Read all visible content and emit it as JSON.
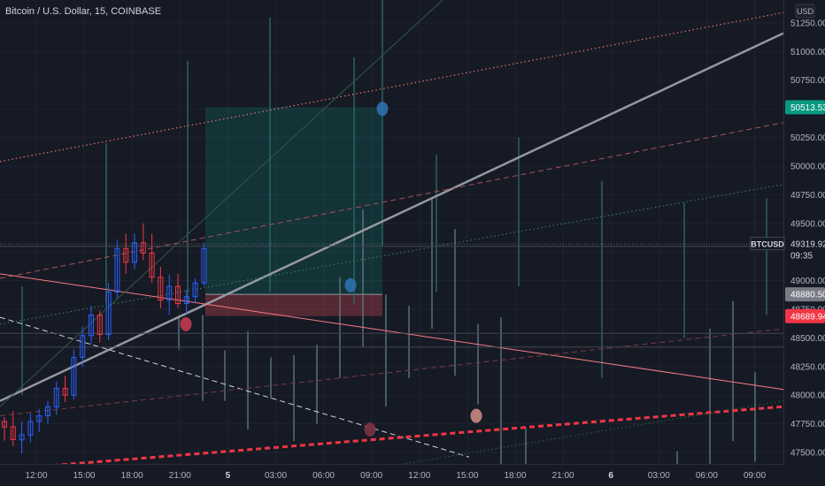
{
  "header": {
    "title": "Bitcoin / U.S. Dollar, 15, COINBASE"
  },
  "currency_button": {
    "label": "USD"
  },
  "colors": {
    "background": "#161a25",
    "up": "#2962ff",
    "down": "#f23645",
    "take_profit": "#089981",
    "stop_loss": "#f7525f",
    "current_price": "#d1d4dc"
  },
  "chart_data": {
    "type": "line",
    "title": "Bitcoin / U.S. Dollar, 15, COINBASE",
    "xlabel": "",
    "ylabel": "",
    "ylim": [
      47400,
      51450
    ],
    "y_ticks": [
      "51250.00",
      "51000.00",
      "50750.00",
      "50500.00",
      "50250.00",
      "50000.00",
      "49750.00",
      "49500.00",
      "49250.00",
      "49000.00",
      "48750.00",
      "48500.00",
      "48250.00",
      "48000.00",
      "47750.00",
      "47500.00"
    ],
    "x_ticks": [
      "12:00",
      "15:00",
      "18:00",
      "21:00",
      "5",
      "03:00",
      "06:00",
      "09:00",
      "12:00",
      "15:00",
      "18:00",
      "21:00",
      "6",
      "03:00",
      "06:00",
      "09:00"
    ],
    "price_labels": [
      {
        "symbol": "",
        "value": "50513.53",
        "price": 50513.53,
        "color": "#089981"
      },
      {
        "symbol": "BTCUSD",
        "value": "49319.92",
        "price": 49319.92,
        "color": "#161a25",
        "countdown": "09:35"
      },
      {
        "symbol": "",
        "value": "48880.50",
        "price": 48880.5,
        "color": "#787b86"
      },
      {
        "symbol": "",
        "value": "48689.94",
        "price": 48689.94,
        "color": "#f23645"
      }
    ],
    "position": {
      "entry": 48880.5,
      "target": 50513.53,
      "stop": 48689.94
    },
    "candles": [
      [
        47771,
        47809,
        47603,
        47722
      ],
      [
        47725,
        47860,
        47556,
        47612
      ],
      [
        47610,
        47771,
        47490,
        47654
      ],
      [
        47652,
        47840,
        47590,
        47771
      ],
      [
        47771,
        47880,
        47680,
        47820
      ],
      [
        47820,
        47950,
        47750,
        47899
      ],
      [
        47898,
        48120,
        47830,
        48060
      ],
      [
        48060,
        48170,
        47940,
        48000
      ],
      [
        48000,
        48400,
        47960,
        48330
      ],
      [
        48330,
        48600,
        48250,
        48520
      ],
      [
        48520,
        48780,
        48440,
        48700
      ],
      [
        48700,
        48740,
        48460,
        48530
      ],
      [
        48530,
        48980,
        48480,
        48900
      ],
      [
        48900,
        49360,
        48850,
        49280
      ],
      [
        49280,
        49410,
        49060,
        49160
      ],
      [
        49160,
        49410,
        49100,
        49330
      ],
      [
        49330,
        49500,
        49180,
        49240
      ],
      [
        49240,
        49410,
        48980,
        49030
      ],
      [
        49030,
        49120,
        48760,
        48830
      ],
      [
        48830,
        49050,
        48700,
        48950
      ],
      [
        48950,
        49060,
        48760,
        48800
      ],
      [
        48800,
        48920,
        48700,
        48860
      ],
      [
        48860,
        49020,
        48800,
        48980
      ],
      [
        48980,
        49330,
        48950,
        49280
      ]
    ],
    "trend_lines": [
      {
        "from": {
          "x": 0,
          "price": 47950
        },
        "to": {
          "x": 885,
          "price": 51160
        },
        "color": "#9598a1",
        "style": "solid",
        "width": 2.5
      },
      {
        "from": {
          "x": 0,
          "price": 50040
        },
        "to": {
          "x": 885,
          "price": 51340
        },
        "color": "#e5736a",
        "style": "dotted",
        "width": 1.2
      },
      {
        "from": {
          "x": 0,
          "price": 49020
        },
        "to": {
          "x": 885,
          "price": 50380
        },
        "color": "#a8535a",
        "style": "dashed",
        "width": 1
      },
      {
        "from": {
          "x": 0,
          "price": 48620
        },
        "to": {
          "x": 885,
          "price": 49840
        },
        "color": "#3e8a56",
        "style": "dotted",
        "width": 1
      },
      {
        "from": {
          "x": 0,
          "price": 49060
        },
        "to": {
          "x": 885,
          "price": 48050
        },
        "color": "#f77c80",
        "style": "solid",
        "width": 1
      },
      {
        "from": {
          "x": 0,
          "price": 48680
        },
        "to": {
          "x": 530,
          "price": 47460
        },
        "color": "#d1d4dc",
        "style": "dashed",
        "width": 1
      },
      {
        "from": {
          "x": 0,
          "price": 47350
        },
        "to": {
          "x": 885,
          "price": 47900
        },
        "color": "#f23645",
        "style": "dashed",
        "width": 3
      },
      {
        "from": {
          "x": 0,
          "price": 47820
        },
        "to": {
          "x": 885,
          "price": 48580
        },
        "color": "#7a3b45",
        "style": "dashed",
        "width": 1
      },
      {
        "from": {
          "x": 0,
          "price": 47900
        },
        "to": {
          "x": 500,
          "price": 51450
        },
        "color": "#2d5a45",
        "style": "solid",
        "width": 1
      },
      {
        "from": {
          "x": 440,
          "price": 47380
        },
        "to": {
          "x": 885,
          "price": 47950
        },
        "color": "#2a6b3a",
        "style": "dotted",
        "width": 1
      },
      {
        "from": {
          "x": 0,
          "price": 49300
        },
        "to": {
          "x": 885,
          "price": 49300
        },
        "color": "#434651",
        "style": "solid",
        "width": 1
      },
      {
        "from": {
          "x": 0,
          "price": 48540
        },
        "to": {
          "x": 885,
          "price": 48540
        },
        "color": "#434651",
        "style": "solid",
        "width": 1
      },
      {
        "from": {
          "x": 0,
          "price": 48420
        },
        "to": {
          "x": 885,
          "price": 48420
        },
        "color": "#434651",
        "style": "solid",
        "width": 1
      }
    ],
    "vertical_segments": [
      {
        "x": 25,
        "from": 48950,
        "to": 48000,
        "color": "#2b6a6a"
      },
      {
        "x": 120,
        "from": 50200,
        "to": 48800,
        "color": "#2b6a6a"
      },
      {
        "x": 212,
        "from": 50920,
        "to": 48800,
        "color": "#2b6a6a"
      },
      {
        "x": 305,
        "from": 51300,
        "to": 48900,
        "color": "#2b6a6a"
      },
      {
        "x": 400,
        "from": 50950,
        "to": 48800,
        "color": "#2b6a6a"
      },
      {
        "x": 432,
        "from": 51450,
        "to": 49300,
        "color": "#2b6a6a"
      },
      {
        "x": 493,
        "from": 50100,
        "to": 48900,
        "color": "#2b6a6a"
      },
      {
        "x": 586,
        "from": 50250,
        "to": 48950,
        "color": "#2b6a6a"
      },
      {
        "x": 680,
        "from": 49870,
        "to": 48150,
        "color": "#2b6a6a"
      },
      {
        "x": 773,
        "from": 49680,
        "to": 48500,
        "color": "#2b6a6a"
      },
      {
        "x": 866,
        "from": 49720,
        "to": 48700,
        "color": "#2b6a6a"
      },
      {
        "x": 202,
        "from": 48700,
        "to": 48400,
        "color": "#5d7a82"
      },
      {
        "x": 229,
        "from": 48700,
        "to": 47950,
        "color": "#5d7a82"
      },
      {
        "x": 254,
        "from": 48390,
        "to": 47950,
        "color": "#5d7a82"
      },
      {
        "x": 280,
        "from": 48560,
        "to": 47700,
        "color": "#5d7a82"
      },
      {
        "x": 306,
        "from": 48330,
        "to": 47970,
        "color": "#5d7a82"
      },
      {
        "x": 332,
        "from": 48350,
        "to": 47600,
        "color": "#5d7a82"
      },
      {
        "x": 358,
        "from": 48440,
        "to": 47750,
        "color": "#5d7a82"
      },
      {
        "x": 384,
        "from": 49030,
        "to": 48150,
        "color": "#5d7a82"
      },
      {
        "x": 410,
        "from": 49620,
        "to": 48420,
        "color": "#5d7a82"
      },
      {
        "x": 436,
        "from": 48880,
        "to": 47900,
        "color": "#5d7a82"
      },
      {
        "x": 462,
        "from": 48780,
        "to": 48150,
        "color": "#5d7a82"
      },
      {
        "x": 488,
        "from": 49720,
        "to": 48580,
        "color": "#5d7a82"
      },
      {
        "x": 514,
        "from": 49450,
        "to": 48170,
        "color": "#5d7a82"
      },
      {
        "x": 540,
        "from": 48620,
        "to": 47920,
        "color": "#5d7a82"
      },
      {
        "x": 566,
        "from": 48680,
        "to": 47400,
        "color": "#5d7a82"
      },
      {
        "x": 594,
        "from": 47710,
        "to": 47400,
        "color": "#5d7a82"
      },
      {
        "x": 765,
        "from": 47510,
        "to": 47400,
        "color": "#5d7a82"
      },
      {
        "x": 802,
        "from": 48580,
        "to": 47400,
        "color": "#5d7a82"
      },
      {
        "x": 828,
        "from": 48820,
        "to": 47600,
        "color": "#5d7a82"
      },
      {
        "x": 853,
        "from": 48200,
        "to": 47420,
        "color": "#5d7a82"
      }
    ],
    "markers": [
      {
        "x": 432,
        "price": 50500,
        "color": "#2f6fb0"
      },
      {
        "x": 396,
        "price": 48960,
        "color": "#2f6fb0"
      },
      {
        "x": 210,
        "price": 48620,
        "color": "#c23a4e"
      },
      {
        "x": 538,
        "price": 47820,
        "color": "#c98a82"
      },
      {
        "x": 418,
        "price": 47700,
        "color": "#7a3440"
      }
    ]
  }
}
